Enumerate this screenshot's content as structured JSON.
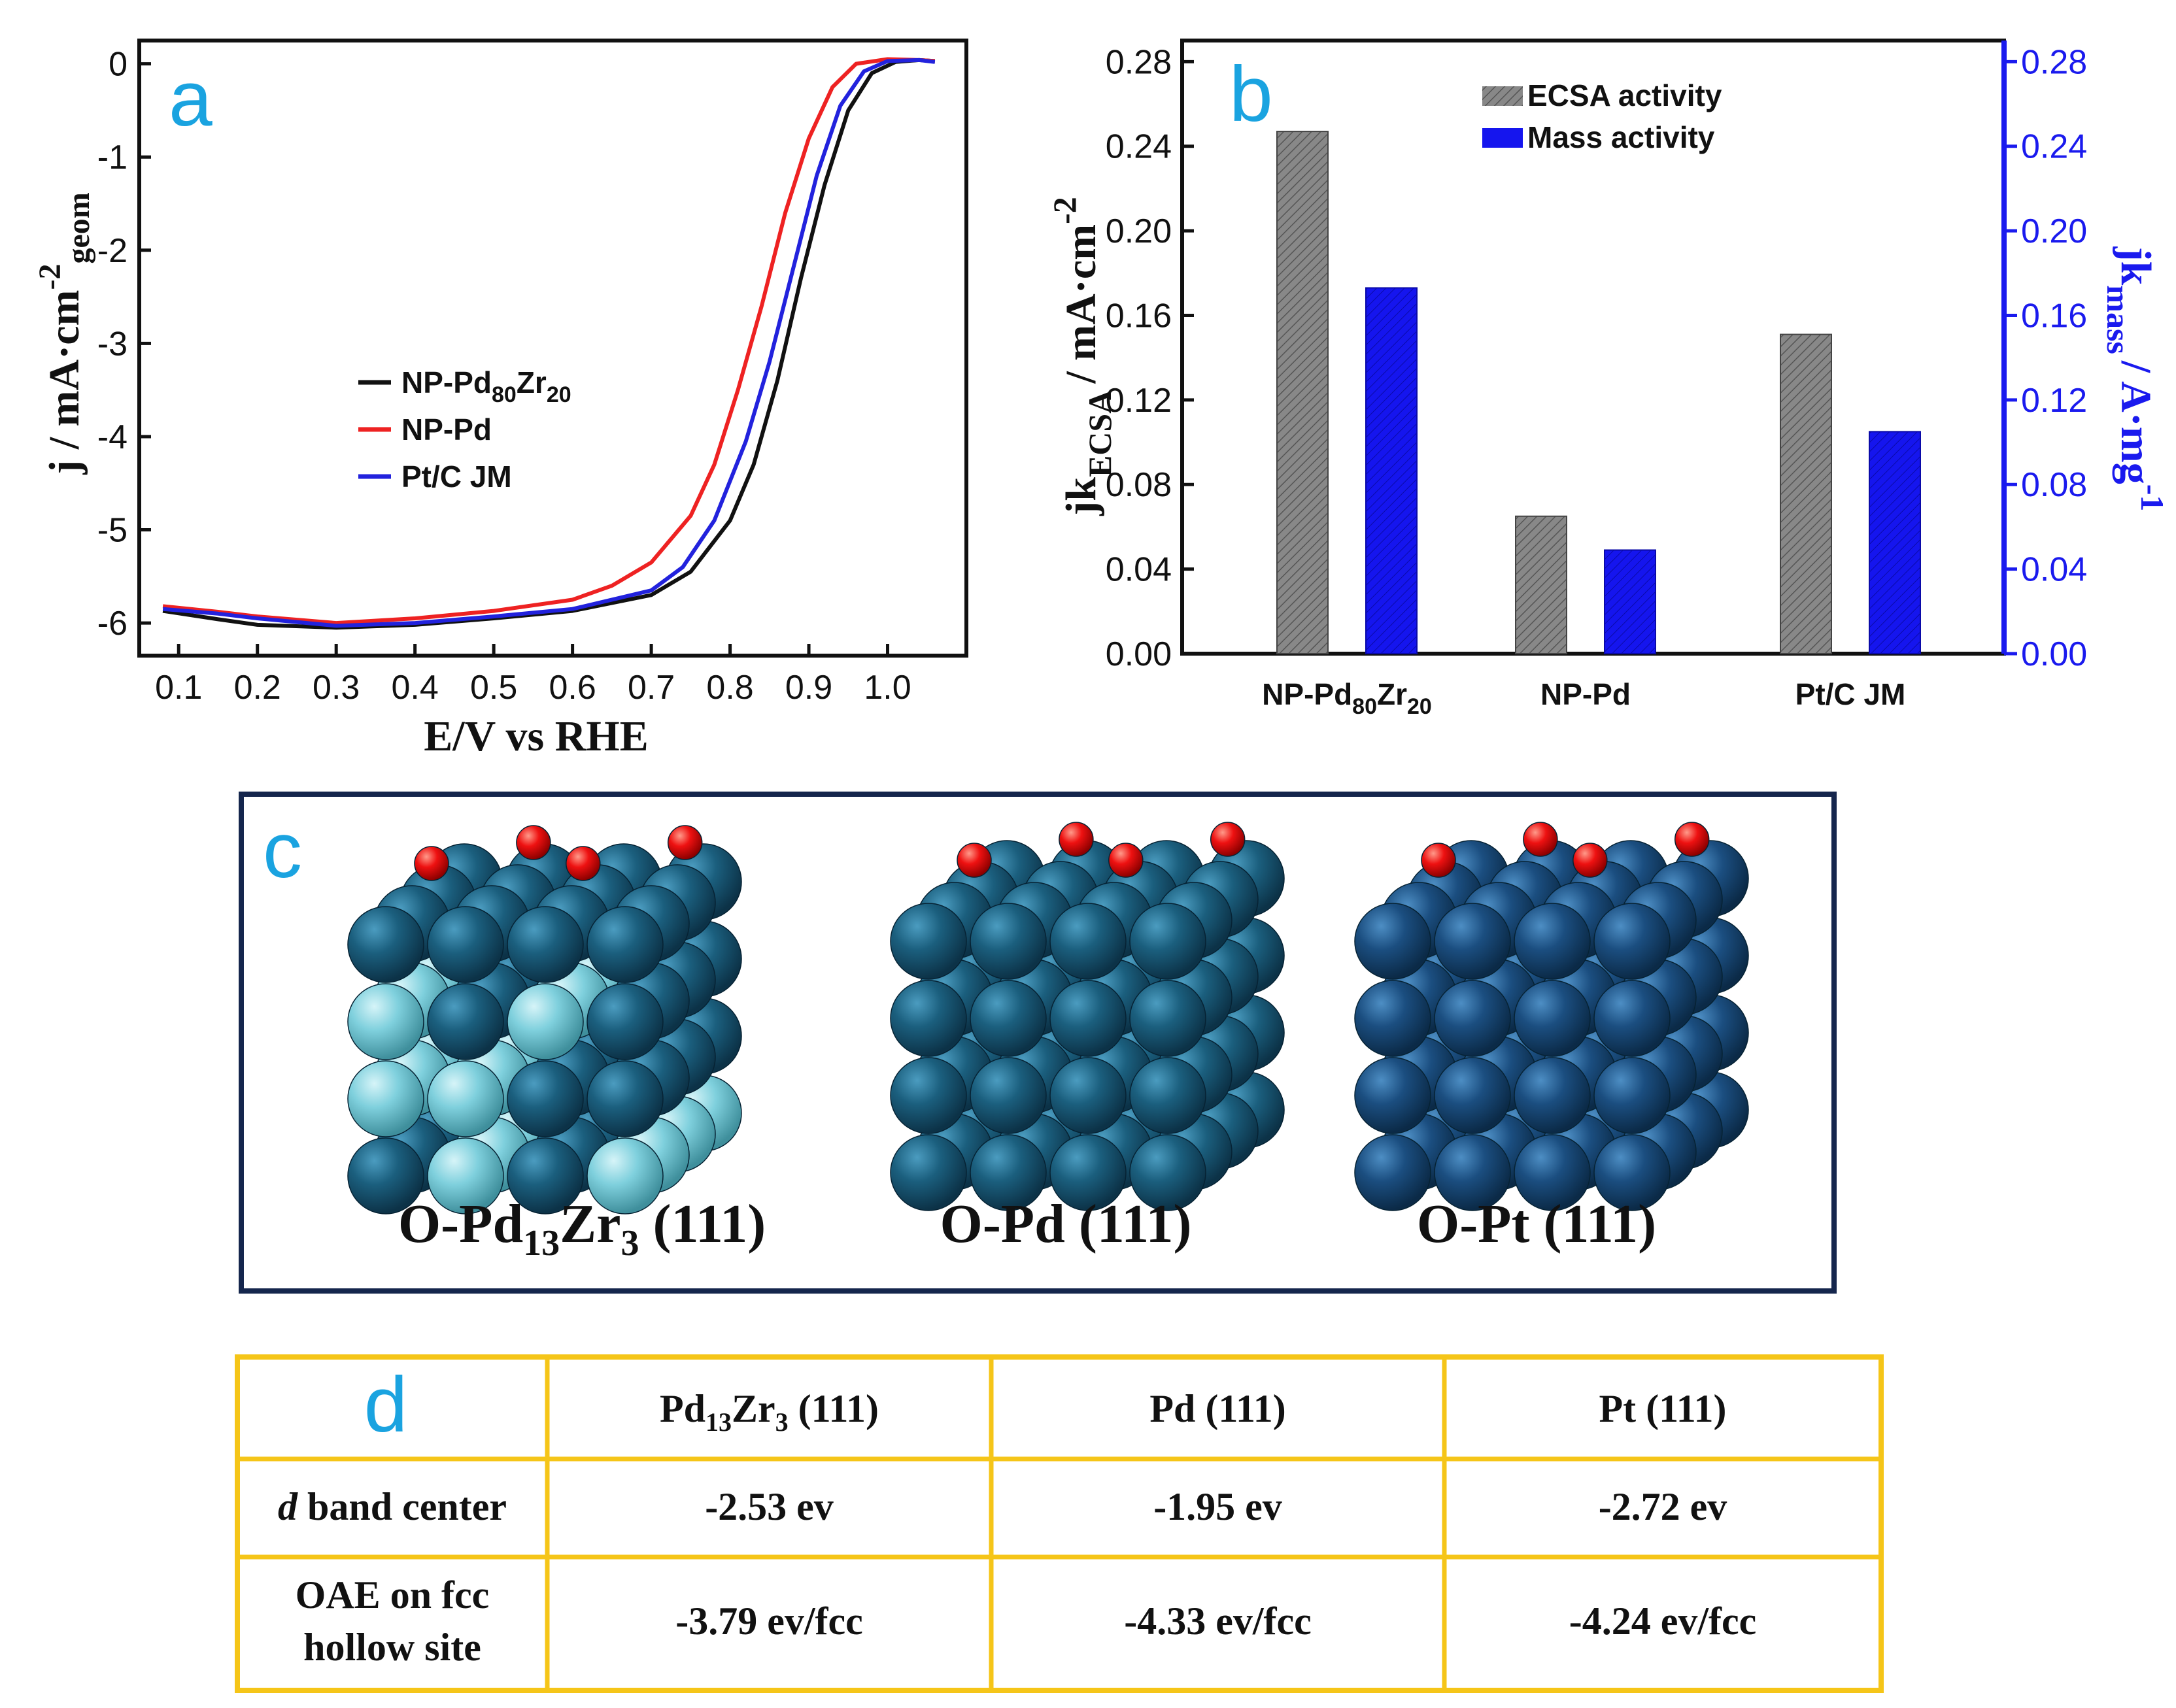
{
  "panel_a_letter": "a",
  "panel_b_letter": "b",
  "panel_c_letter": "c",
  "panel_d_letter": "d",
  "chart_data": [
    {
      "type": "line",
      "panel": "a",
      "xlabel": "E/V vs RHE",
      "ylabel": "j / mA·cm-2geom",
      "ylabel_parts": {
        "main": "j / mA·cm",
        "sup": "-2",
        "sub": "geom"
      },
      "xlim": [
        0.05,
        1.1
      ],
      "ylim": [
        -6.35,
        0.25
      ],
      "xticks": [
        0.1,
        0.2,
        0.3,
        0.4,
        0.5,
        0.6,
        0.7,
        0.8,
        0.9,
        1.0
      ],
      "xtick_labels": [
        "0.1",
        "0.2",
        "0.3",
        "0.4",
        "0.5",
        "0.6",
        "0.7",
        "0.8",
        "0.9",
        "1.0"
      ],
      "yticks": [
        0,
        -1,
        -2,
        -3,
        -4,
        -5,
        -6
      ],
      "ytick_labels": [
        "0",
        "-1",
        "-2",
        "-3",
        "-4",
        "-5",
        "-6"
      ],
      "legend_position": "center-left",
      "series": [
        {
          "name": "NP-Pd80Zr20",
          "label_parts": {
            "pre": "NP-Pd",
            "sub1": "80",
            "mid": "Zr",
            "sub2": "20"
          },
          "color": "#111111",
          "x": [
            0.08,
            0.15,
            0.2,
            0.3,
            0.4,
            0.5,
            0.6,
            0.7,
            0.75,
            0.8,
            0.83,
            0.86,
            0.89,
            0.92,
            0.95,
            0.98,
            1.01,
            1.04,
            1.06
          ],
          "y": [
            -5.87,
            -5.96,
            -6.02,
            -6.05,
            -6.02,
            -5.95,
            -5.87,
            -5.7,
            -5.45,
            -4.9,
            -4.3,
            -3.4,
            -2.3,
            -1.3,
            -0.5,
            -0.1,
            0.02,
            0.04,
            0.03
          ]
        },
        {
          "name": "NP-Pd",
          "label_parts": {
            "pre": "NP-Pd",
            "sub1": "",
            "mid": "",
            "sub2": ""
          },
          "color": "#ee2222",
          "x": [
            0.08,
            0.15,
            0.2,
            0.3,
            0.4,
            0.5,
            0.6,
            0.65,
            0.7,
            0.75,
            0.78,
            0.81,
            0.84,
            0.87,
            0.9,
            0.93,
            0.96,
            1.0,
            1.04,
            1.06
          ],
          "y": [
            -5.82,
            -5.88,
            -5.93,
            -6.0,
            -5.95,
            -5.87,
            -5.75,
            -5.6,
            -5.35,
            -4.85,
            -4.3,
            -3.5,
            -2.6,
            -1.6,
            -0.8,
            -0.25,
            0.0,
            0.05,
            0.04,
            0.03
          ]
        },
        {
          "name": "Pt/C JM",
          "label_parts": {
            "pre": "Pt/C JM",
            "sub1": "",
            "mid": "",
            "sub2": ""
          },
          "color": "#2222dd",
          "x": [
            0.08,
            0.15,
            0.2,
            0.3,
            0.4,
            0.5,
            0.6,
            0.7,
            0.74,
            0.78,
            0.82,
            0.85,
            0.88,
            0.91,
            0.94,
            0.97,
            1.0,
            1.04,
            1.06
          ],
          "y": [
            -5.85,
            -5.9,
            -5.95,
            -6.03,
            -6.0,
            -5.93,
            -5.85,
            -5.65,
            -5.4,
            -4.9,
            -4.05,
            -3.2,
            -2.2,
            -1.2,
            -0.45,
            -0.08,
            0.03,
            0.04,
            0.02
          ]
        }
      ]
    },
    {
      "type": "bar",
      "panel": "b",
      "categories": [
        "NP-Pd80Zr20",
        "NP-Pd",
        "Pt/C JM"
      ],
      "category_parts": [
        {
          "pre": "NP-Pd",
          "sub1": "80",
          "mid": "Zr",
          "sub2": "20"
        },
        {
          "pre": "NP-Pd",
          "sub1": "",
          "mid": "",
          "sub2": ""
        },
        {
          "pre": "Pt/C JM",
          "sub1": "",
          "mid": "",
          "sub2": ""
        }
      ],
      "ylabel": "jkECSA / mA·cm-2",
      "ylabel_parts": {
        "main": "jk",
        "sub": "ECSA",
        "rest": "/ mA·cm",
        "sup": "-2"
      },
      "ylabel_right": "jkmass / A·mg-1",
      "ylabel_right_parts": {
        "main": "jk",
        "sub": "mass",
        "rest": "/ A·mg",
        "sup": "-1"
      },
      "ylim": [
        0,
        0.29
      ],
      "yticks": [
        0.0,
        0.04,
        0.08,
        0.12,
        0.16,
        0.2,
        0.24,
        0.28
      ],
      "ytick_labels": [
        "0.00",
        "0.04",
        "0.08",
        "0.12",
        "0.16",
        "0.20",
        "0.24",
        "0.28"
      ],
      "legend_position": "top-center",
      "series": [
        {
          "name": "ECSA activity",
          "color": "#777777",
          "values": [
            0.247,
            0.065,
            0.151
          ]
        },
        {
          "name": "Mass activity",
          "color": "#1010ee",
          "values": [
            0.173,
            0.049,
            0.105
          ]
        }
      ]
    },
    {
      "type": "table",
      "panel": "d",
      "columns": [
        {
          "text": "Pd13Zr3 (111)",
          "parts": {
            "pre": "Pd",
            "sub1": "13",
            "mid": "Zr",
            "sub2": "3",
            "post": " (111)"
          }
        },
        {
          "text": "Pd (111)",
          "parts": {
            "pre": "Pd (111)",
            "sub1": "",
            "mid": "",
            "sub2": "",
            "post": ""
          }
        },
        {
          "text": "Pt (111)",
          "parts": {
            "pre": "Pt (111)",
            "sub1": "",
            "mid": "",
            "sub2": "",
            "post": ""
          }
        }
      ],
      "rows": [
        {
          "header_italic": "d",
          "header_rest": " band center",
          "values": [
            "-2.53 ev",
            "-1.95 ev",
            "-2.72 ev"
          ]
        },
        {
          "header_line1": "OAE on fcc",
          "header_line2": "hollow site",
          "values": [
            "-3.79 ev/fcc",
            "-4.33 ev/fcc",
            "-4.24 ev/fcc"
          ]
        }
      ]
    }
  ],
  "structures": [
    {
      "label": "O-Pd13Zr3 (111)",
      "parts": {
        "pre": "O-Pd",
        "sub1": "13",
        "mid": "Zr",
        "sub2": "3",
        "post": " (111)"
      }
    },
    {
      "label": "O-Pd (111)",
      "parts": {
        "pre": "O-Pd (111)",
        "sub1": "",
        "mid": "",
        "sub2": "",
        "post": ""
      }
    },
    {
      "label": "O-Pt (111)",
      "parts": {
        "pre": "O-Pt (111)",
        "sub1": "",
        "mid": "",
        "sub2": "",
        "post": ""
      }
    }
  ],
  "colors": {
    "pd_atom": "#1b5f7e",
    "pt_atom": "#1b4e80",
    "zr_atom": "#7fd0dd",
    "o_atom": "#ee1111",
    "frame_c": "#15264d",
    "frame_d": "#f5c518",
    "right_axis": "#1a1aee",
    "letters": "#1aa3e0"
  }
}
